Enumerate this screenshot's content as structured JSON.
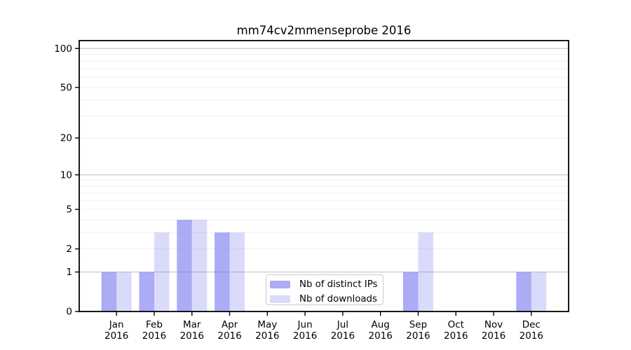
{
  "chart_data": {
    "type": "bar",
    "title": "mm74cv2mmenseprobe 2016",
    "year": "2016",
    "months": [
      "Jan",
      "Feb",
      "Mar",
      "Apr",
      "May",
      "Jun",
      "Jul",
      "Aug",
      "Sep",
      "Oct",
      "Nov",
      "Dec"
    ],
    "series": [
      {
        "name": "Nb of distinct IPs",
        "color": "#7878f0",
        "alpha": 0.62,
        "values": [
          1,
          1,
          4,
          3,
          0,
          0,
          0,
          0,
          1,
          0,
          0,
          1
        ]
      },
      {
        "name": "Nb of downloads",
        "color": "#7878f0",
        "alpha": 0.27,
        "values": [
          1,
          3,
          4,
          3,
          0,
          0,
          0,
          0,
          3,
          0,
          0,
          1
        ]
      }
    ],
    "xlabel": "",
    "ylabel": "",
    "yticks": [
      0,
      1,
      2,
      5,
      10,
      20,
      50,
      100
    ],
    "ylim": [
      0,
      115
    ],
    "scale": "log1p",
    "grid": {
      "major_values": [
        1,
        10,
        100
      ],
      "minor_values": [
        2,
        3,
        4,
        5,
        6,
        7,
        8,
        9,
        20,
        30,
        40,
        50,
        60,
        70,
        80,
        90
      ],
      "major_color": "#bdbdbd",
      "minor_color": "#efefef"
    },
    "legend": {
      "position": "bottom-center",
      "items": [
        "Nb of distinct IPs",
        "Nb of downloads"
      ]
    },
    "axis_color": "#000000"
  }
}
